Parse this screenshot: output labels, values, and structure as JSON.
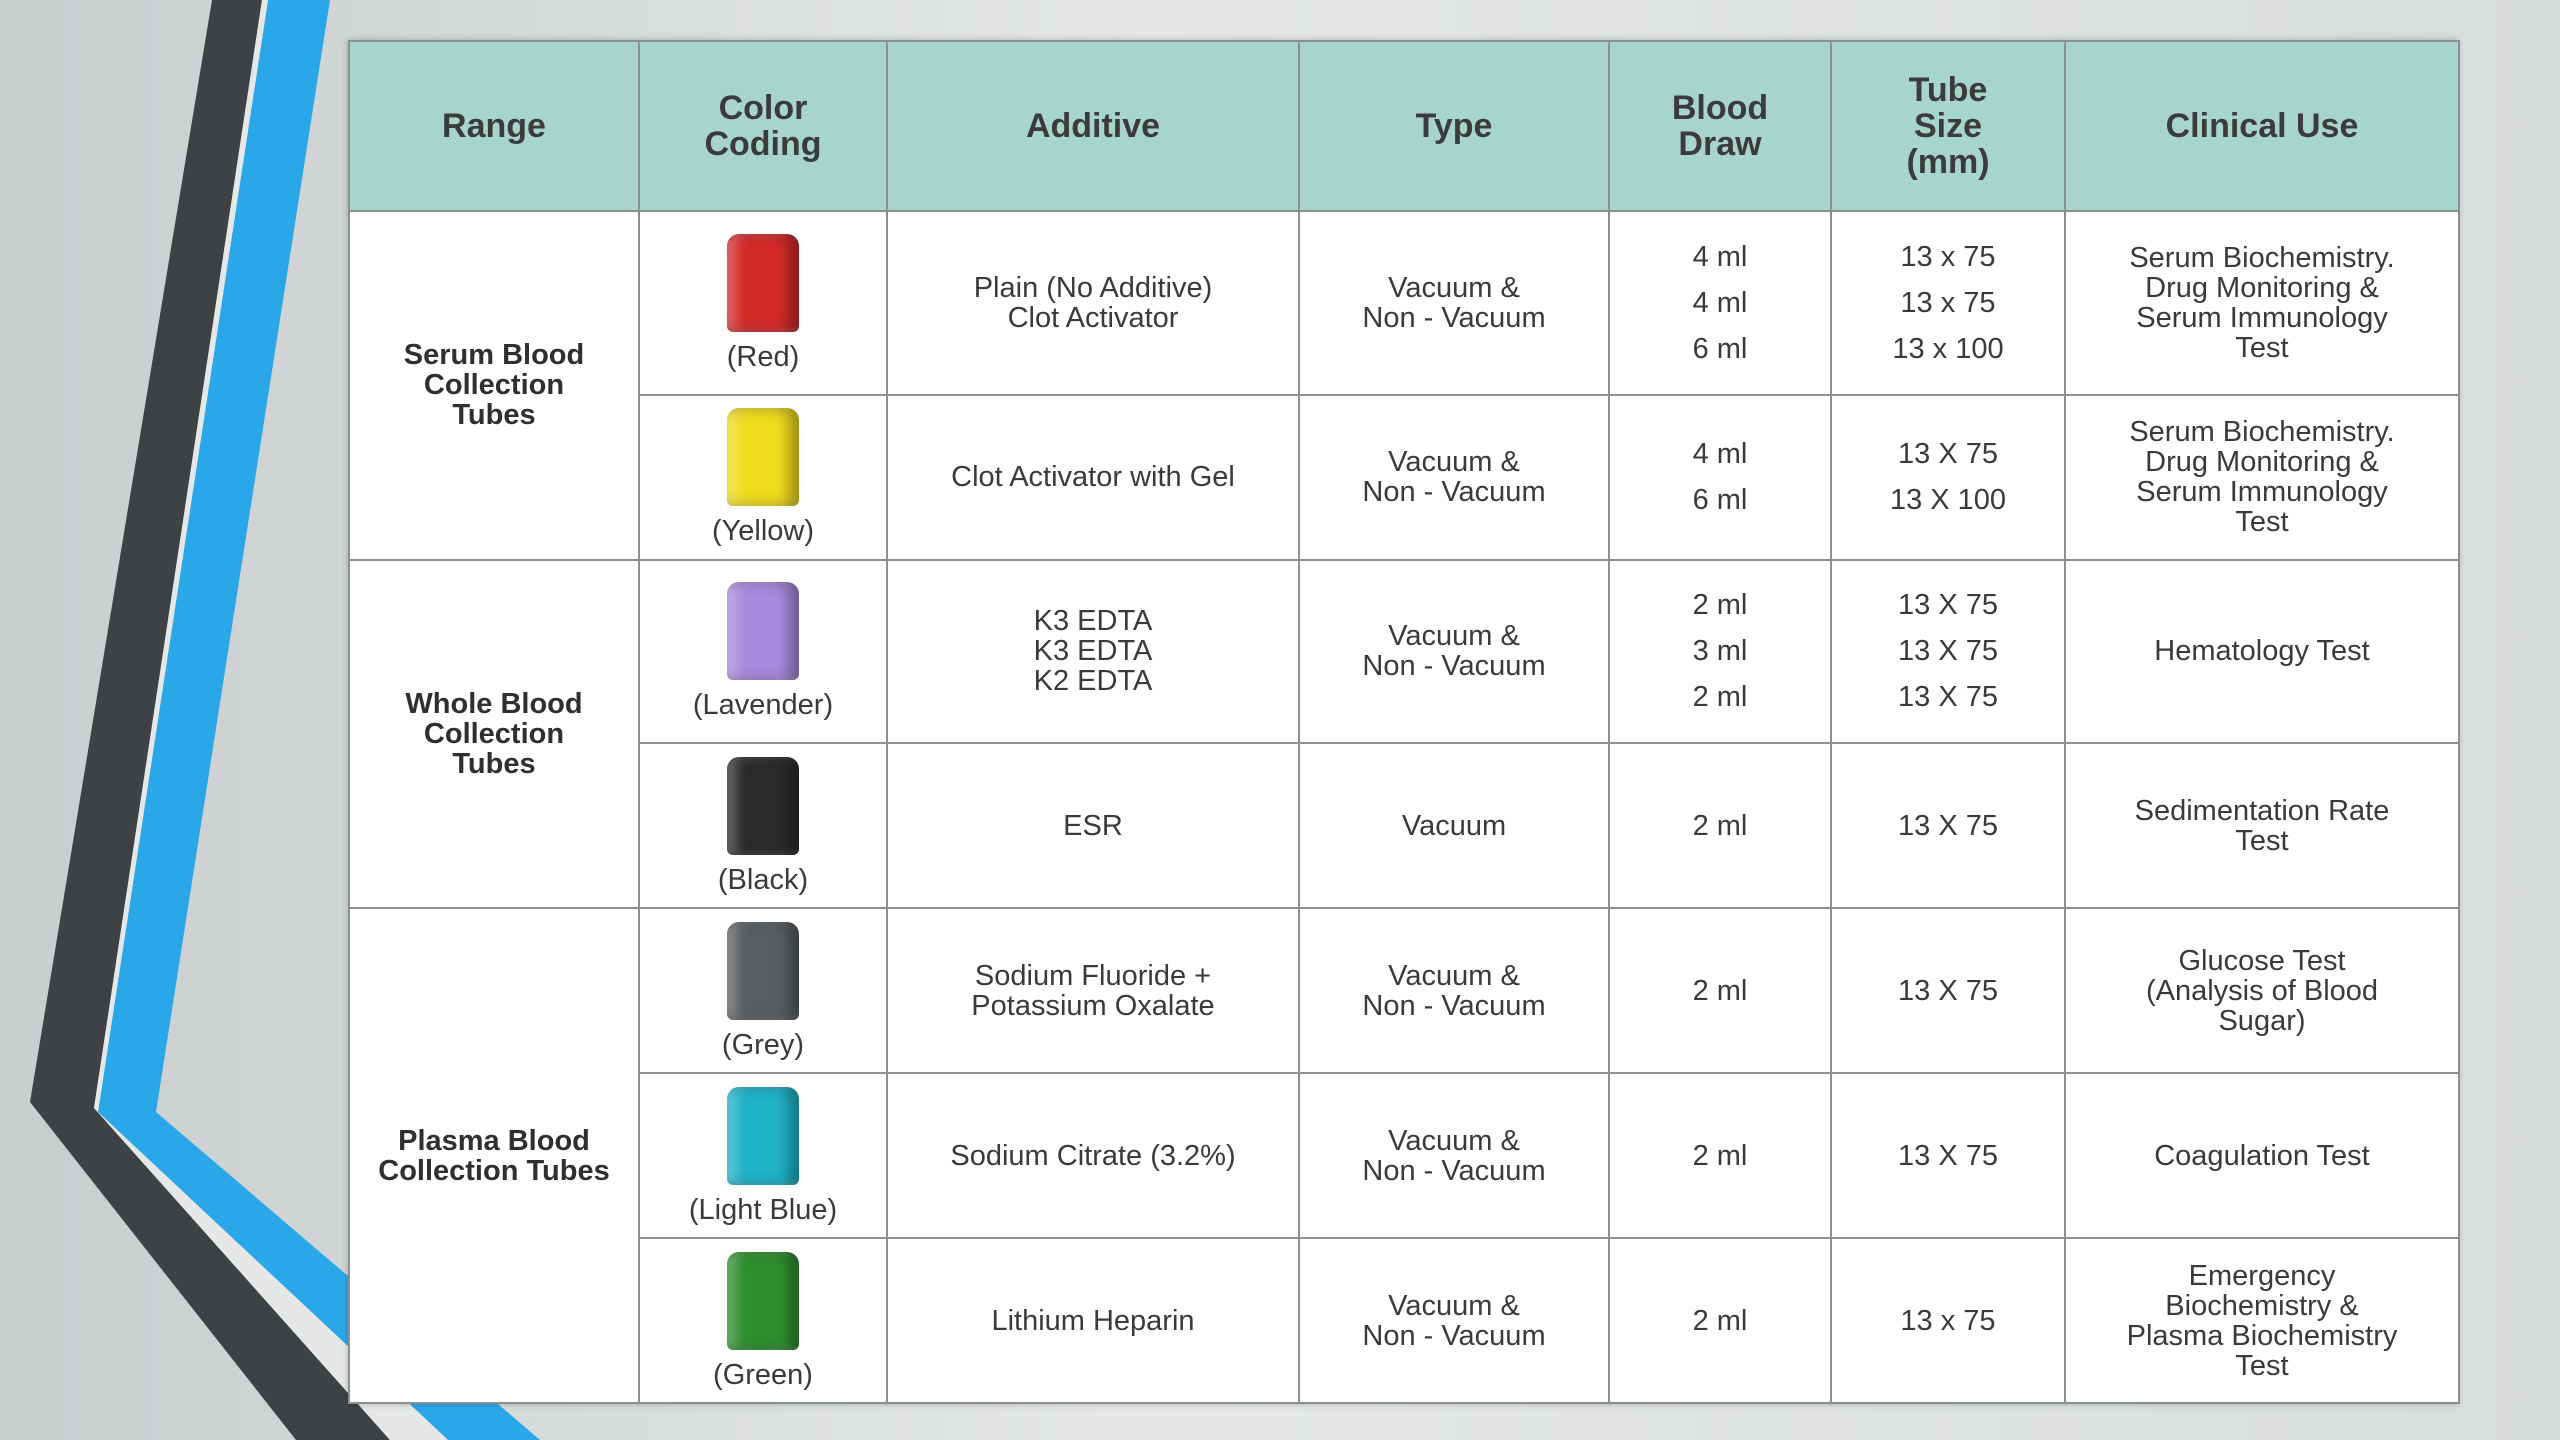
{
  "colors": {
    "header_bg": "#a8d5cb",
    "accent_blue": "#2aa7e8",
    "stripe_dark": "#3f4244"
  },
  "headers": {
    "range": "Range",
    "color_coding": "Color Coding",
    "additive": "Additive",
    "type": "Type",
    "blood_draw": "Blood Draw",
    "tube_size": "Tube Size (mm)",
    "clinical_use": "Clinical Use"
  },
  "ranges": {
    "serum": "Serum Blood Collection Tubes",
    "whole": "Whole Blood Collection Tubes",
    "plasma": "Plasma Blood Collection Tubes"
  },
  "rows": [
    {
      "tube_color": "#d42a2a",
      "tube_icon": "red-tube-icon",
      "color_label": "(Red)",
      "additive": [
        "Plain (No Additive)",
        "Clot Activator"
      ],
      "type": [
        "Vacuum &",
        "Non - Vacuum"
      ],
      "blood_draw": [
        "4 ml",
        "4 ml",
        "6 ml"
      ],
      "tube_size": [
        "13 x 75",
        "13 x 75",
        "13 x 100"
      ],
      "clinical_use": [
        "Serum Biochemistry.",
        "Drug Monitoring &",
        "Serum Immunology",
        "Test"
      ]
    },
    {
      "tube_color": "#f0dc1e",
      "tube_icon": "yellow-tube-icon",
      "color_label": "(Yellow)",
      "additive": [
        "Clot Activator with Gel"
      ],
      "type": [
        "Vacuum &",
        "Non - Vacuum"
      ],
      "blood_draw": [
        "4 ml",
        "6 ml"
      ],
      "tube_size": [
        "13 X 75",
        "13 X 100"
      ],
      "clinical_use": [
        "Serum Biochemistry.",
        "Drug Monitoring &",
        "Serum Immunology",
        "Test"
      ]
    },
    {
      "tube_color": "#a98bde",
      "tube_icon": "lavender-tube-icon",
      "color_label": "(Lavender)",
      "additive": [
        "K3 EDTA",
        "K3 EDTA",
        "K2 EDTA"
      ],
      "type": [
        "Vacuum &",
        "Non - Vacuum"
      ],
      "blood_draw": [
        "2 ml",
        "3 ml",
        "2 ml"
      ],
      "tube_size": [
        "13 X 75",
        "13 X 75",
        "13 X 75"
      ],
      "clinical_use": [
        "Hematology Test"
      ]
    },
    {
      "tube_color": "#2b2b2b",
      "tube_icon": "black-tube-icon",
      "color_label": "(Black)",
      "additive": [
        "ESR"
      ],
      "type": [
        "Vacuum"
      ],
      "blood_draw": [
        "2 ml"
      ],
      "tube_size": [
        "13 X 75"
      ],
      "clinical_use": [
        "Sedimentation Rate",
        "Test"
      ]
    },
    {
      "tube_color": "#5a5f63",
      "tube_icon": "grey-tube-icon",
      "color_label": "(Grey)",
      "additive": [
        "Sodium Fluoride +",
        "Potassium Oxalate"
      ],
      "type": [
        "Vacuum &",
        "Non - Vacuum"
      ],
      "blood_draw": [
        "2 ml"
      ],
      "tube_size": [
        "13 X 75"
      ],
      "clinical_use": [
        "Glucose Test",
        "(Analysis of Blood",
        "Sugar)"
      ]
    },
    {
      "tube_color": "#1fb3c8",
      "tube_icon": "light-blue-tube-icon",
      "color_label": "(Light Blue)",
      "additive": [
        "Sodium Citrate (3.2%)"
      ],
      "type": [
        "Vacuum &",
        "Non - Vacuum"
      ],
      "blood_draw": [
        "2 ml"
      ],
      "tube_size": [
        "13 X 75"
      ],
      "clinical_use": [
        "Coagulation Test"
      ]
    },
    {
      "tube_color": "#2f8f2f",
      "tube_icon": "green-tube-icon",
      "color_label": "(Green)",
      "additive": [
        "Lithium Heparin"
      ],
      "type": [
        "Vacuum &",
        "Non - Vacuum"
      ],
      "blood_draw": [
        "2 ml"
      ],
      "tube_size": [
        "13 x 75"
      ],
      "clinical_use": [
        "Emergency",
        "Biochemistry &",
        "Plasma Biochemistry",
        "Test"
      ]
    }
  ]
}
